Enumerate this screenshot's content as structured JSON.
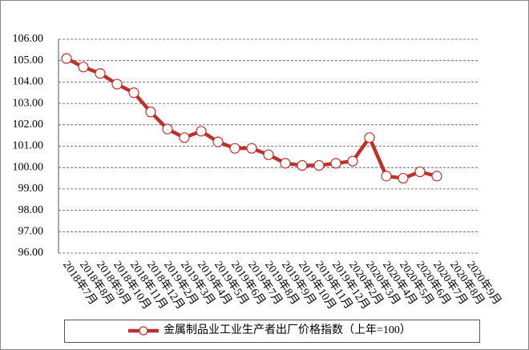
{
  "chart_data": {
    "type": "line",
    "categories": [
      "2018年7月",
      "2018年8月",
      "2018年9月",
      "2018年10月",
      "2018年11月",
      "2018年12月",
      "2019年2月",
      "2019年3月",
      "2019年4月",
      "2019年5月",
      "2019年6月",
      "2019年7月",
      "2019年8月",
      "2019年9月",
      "2019年10月",
      "2019年11月",
      "2019年12月",
      "2020年2月",
      "2020年3月",
      "2020年4月",
      "2020年5月",
      "2020年6月",
      "2020年7月",
      "2020年8月",
      "2020年9月"
    ],
    "series": [
      {
        "name": "金属制品业工业生产者出厂价格指数（上年=100）",
        "color": "#c0302a",
        "values": [
          105.1,
          104.7,
          104.4,
          103.9,
          103.5,
          102.6,
          101.8,
          101.4,
          101.7,
          101.2,
          100.9,
          100.9,
          100.6,
          100.2,
          100.1,
          100.1,
          100.2,
          100.3,
          101.4,
          99.6,
          99.5,
          99.8,
          99.6,
          null,
          null
        ]
      }
    ],
    "ylim": [
      96,
      106
    ],
    "yticks": [
      {
        "value": 96,
        "label": "96.00"
      },
      {
        "value": 97,
        "label": "97.00"
      },
      {
        "value": 98,
        "label": "98.00"
      },
      {
        "value": 99,
        "label": "99.00"
      },
      {
        "value": 100,
        "label": "100.00"
      },
      {
        "value": 101,
        "label": "101.00"
      },
      {
        "value": 102,
        "label": "102.00"
      },
      {
        "value": 103,
        "label": "103.00"
      },
      {
        "value": 104,
        "label": "104.00"
      },
      {
        "value": 105,
        "label": "105.00"
      },
      {
        "value": 106,
        "label": "106.00"
      }
    ],
    "grid": true,
    "legend": "bottom"
  }
}
